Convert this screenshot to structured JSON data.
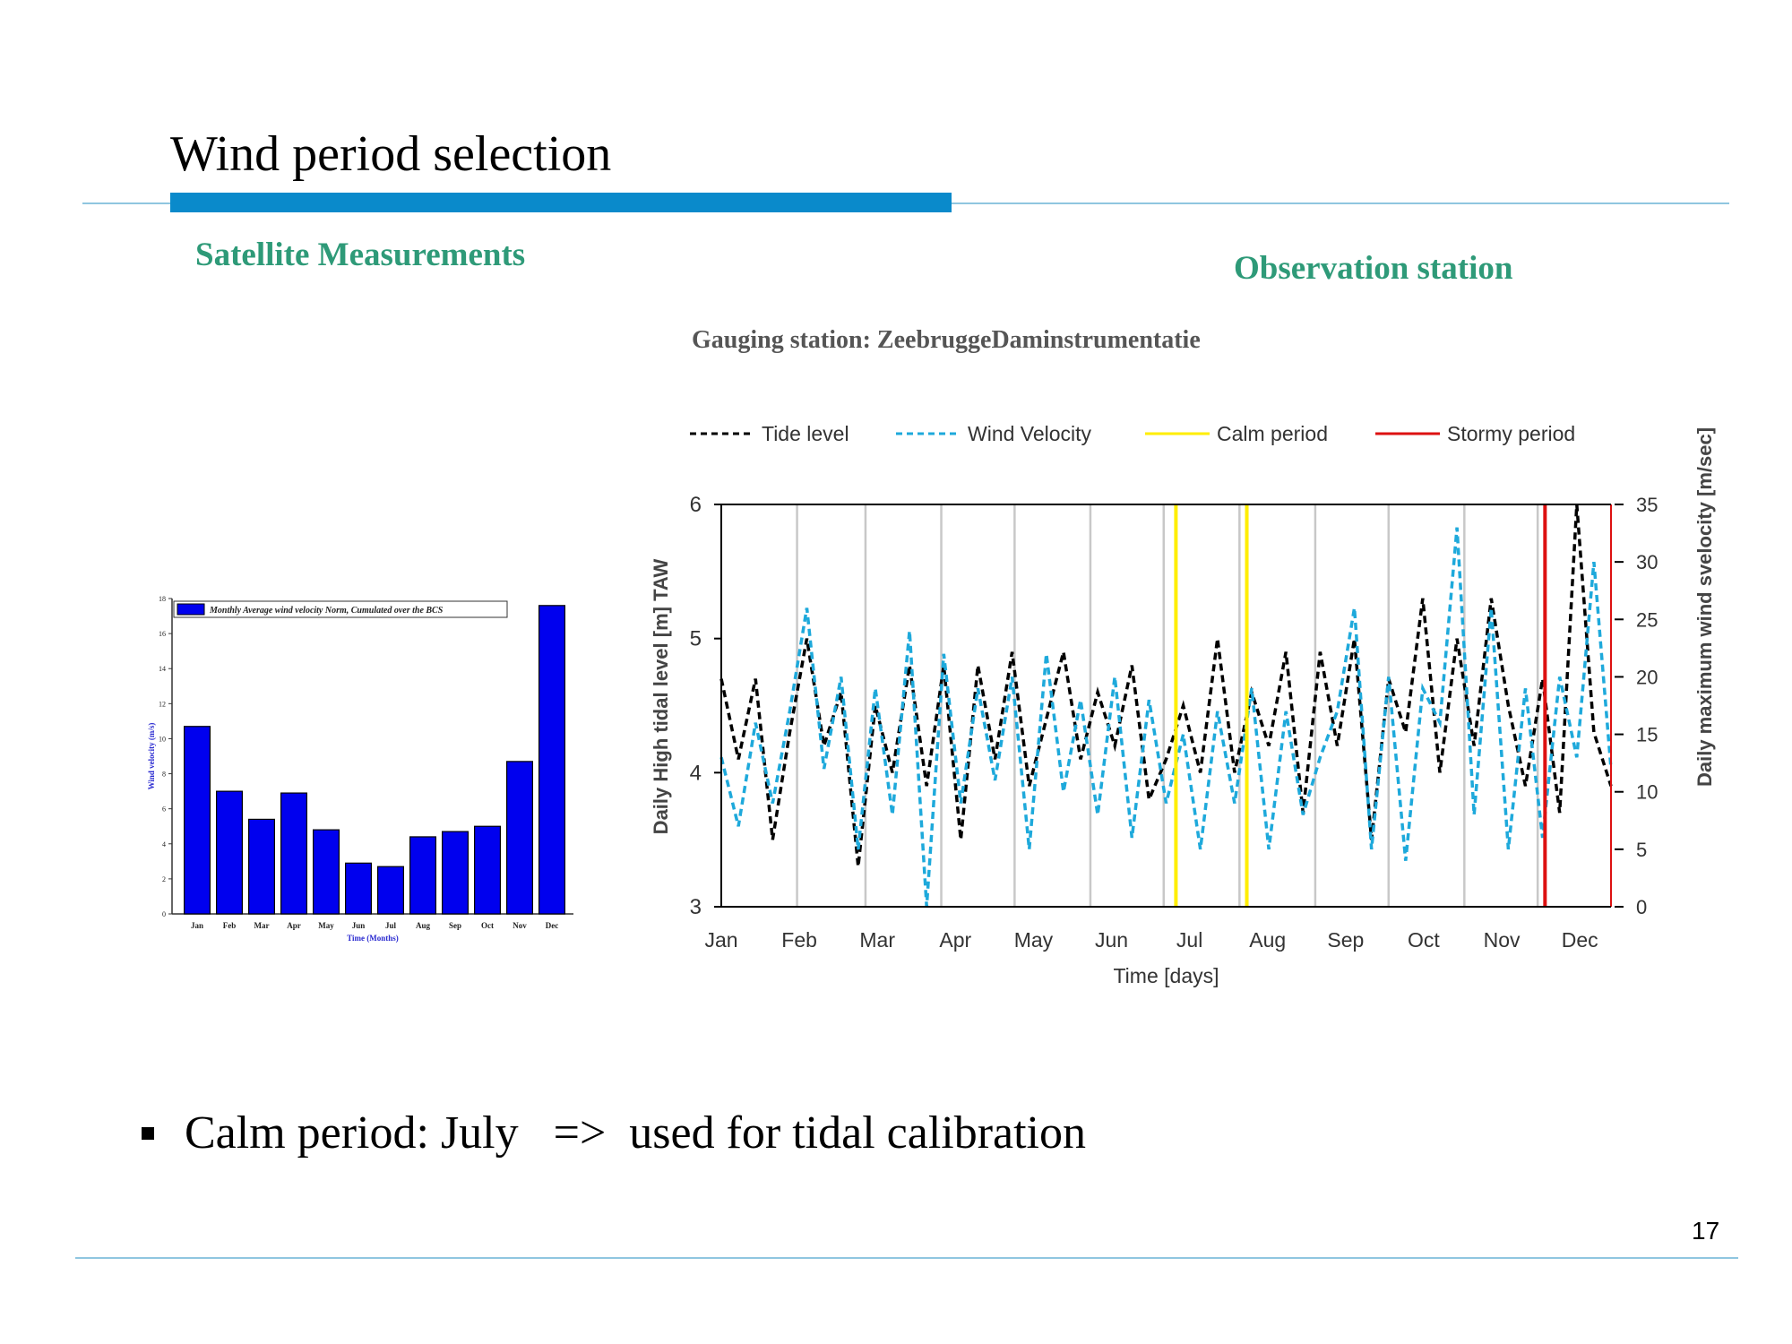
{
  "slide": {
    "title": "Wind period selection",
    "left_heading": "Satellite  Measurements",
    "right_heading": "Observation station",
    "bullet": "Calm period: July   =>  used for tidal calibration",
    "page_number": "17",
    "accent_color": "#0a8acb",
    "heading_color": "#2e9a78"
  },
  "chart_data": [
    {
      "type": "bar",
      "legend": "Monthly Average wind velocity Norm, Cumulated over the BCS",
      "xlabel": "Time (Months)",
      "ylabel": "Wind velocity (m/s)",
      "categories": [
        "Jan",
        "Feb",
        "Mar",
        "Apr",
        "May",
        "Jun",
        "Jul",
        "Aug",
        "Sep",
        "Oct",
        "Nov",
        "Dec"
      ],
      "values": [
        10.7,
        7.0,
        5.4,
        6.9,
        4.8,
        2.9,
        2.7,
        4.4,
        4.7,
        5.0,
        8.7,
        17.6
      ],
      "ylim": [
        0,
        18
      ],
      "yticks": [
        "0",
        "2",
        "4",
        "6",
        "8",
        "10",
        "12",
        "14",
        "16",
        "18"
      ],
      "bar_color": "#0000ee",
      "grid": false
    },
    {
      "type": "line",
      "title": "Gauging station: ZeebruggeDaminstrumentatie",
      "xlabel": "Time [days]",
      "ylabel_left": "Daily High tidal level [m] TAW",
      "ylabel_right": "Daily maximum  wind svelocity  [m/sec]",
      "months": [
        "Jan",
        "Feb",
        "Mar",
        "Apr",
        "May",
        "Jun",
        "Jul",
        "Aug",
        "Sep",
        "Oct",
        "Nov",
        "Dec"
      ],
      "ylim_left": [
        3,
        6
      ],
      "ylim_right": [
        0,
        35
      ],
      "yticks_left": [
        "3",
        "4",
        "5",
        "6"
      ],
      "yticks_right": [
        "0",
        "5",
        "10",
        "15",
        "20",
        "25",
        "30",
        "35"
      ],
      "legend": [
        "Tide level",
        "Wind Velocity",
        "Calm period",
        "Stormy period"
      ],
      "series": [
        {
          "name": "Tide level",
          "color": "#000000",
          "axis": "left",
          "day": [
            1,
            8,
            15,
            22,
            29,
            36,
            43,
            50,
            57,
            64,
            71,
            78,
            85,
            92,
            99,
            106,
            113,
            120,
            127,
            134,
            141,
            148,
            155,
            162,
            169,
            176,
            183,
            190,
            197,
            204,
            211,
            218,
            225,
            232,
            239,
            246,
            253,
            260,
            267,
            274,
            281,
            288,
            295,
            302,
            309,
            316,
            323,
            330,
            337,
            344,
            351,
            358,
            365
          ],
          "values": [
            4.7,
            4.1,
            4.7,
            3.5,
            4.3,
            5.0,
            4.2,
            4.6,
            3.3,
            4.5,
            4.0,
            4.8,
            3.9,
            4.8,
            3.5,
            4.8,
            4.1,
            4.9,
            3.9,
            4.4,
            4.9,
            4.1,
            4.6,
            4.2,
            4.8,
            3.8,
            4.1,
            4.5,
            4.0,
            5.0,
            4.0,
            4.6,
            4.2,
            4.9,
            3.7,
            4.9,
            4.2,
            5.0,
            3.5,
            4.7,
            4.3,
            5.3,
            4.0,
            5.0,
            4.2,
            5.3,
            4.5,
            3.9,
            4.7,
            3.7,
            6.0,
            4.3,
            3.9
          ],
          "dashed": true
        },
        {
          "name": "Wind Velocity",
          "color": "#1ea9db",
          "axis": "right",
          "day": [
            1,
            8,
            15,
            22,
            29,
            36,
            43,
            50,
            57,
            64,
            71,
            78,
            85,
            92,
            99,
            106,
            113,
            120,
            127,
            134,
            141,
            148,
            155,
            162,
            169,
            176,
            183,
            190,
            197,
            204,
            211,
            218,
            225,
            232,
            239,
            246,
            253,
            260,
            267,
            274,
            281,
            288,
            295,
            302,
            309,
            316,
            323,
            330,
            337,
            344,
            351,
            358,
            365
          ],
          "values": [
            13,
            7,
            16,
            9,
            17,
            26,
            12,
            20,
            5,
            19,
            8,
            24,
            0,
            22,
            9,
            19,
            11,
            20,
            5,
            22,
            10,
            18,
            8,
            20,
            6,
            18,
            9,
            15,
            5,
            17,
            9,
            19,
            5,
            17,
            8,
            13,
            17,
            26,
            5,
            20,
            4,
            19,
            16,
            33,
            8,
            26,
            5,
            19,
            6,
            20,
            13,
            30,
            12
          ],
          "dashed": true
        }
      ],
      "markers": [
        {
          "name": "Calm period",
          "color": "#ffee00",
          "day": [
            187,
            216
          ]
        },
        {
          "name": "Stormy period",
          "color": "#dd1111",
          "day": [
            338
          ]
        }
      ],
      "grid": "vertical month lines"
    }
  ]
}
